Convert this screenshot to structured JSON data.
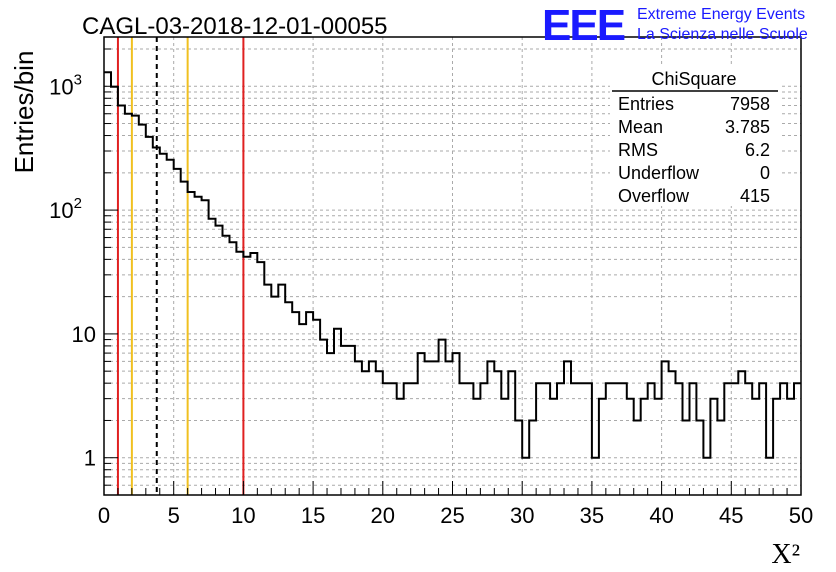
{
  "title": "CAGL-03-2018-12-01-00055",
  "logo": {
    "letters": "EEE",
    "line1": "Extreme Energy Events",
    "line2": "La Scienza nelle Scuole",
    "color": "#1a1aff"
  },
  "stats": {
    "title": "ChiSquare",
    "rows": [
      {
        "label": "Entries",
        "value": "7958"
      },
      {
        "label": "Mean",
        "value": "3.785"
      },
      {
        "label": "RMS",
        "value": "6.2"
      },
      {
        "label": "Underflow",
        "value": "0"
      },
      {
        "label": "Overflow",
        "value": "415"
      }
    ]
  },
  "chart_data": {
    "type": "histogram",
    "title": "CAGL-03-2018-12-01-00055",
    "xlabel": "X²",
    "ylabel": "Entries/bin",
    "xlim": [
      0,
      50
    ],
    "ylim": [
      0.5,
      2500
    ],
    "log_y": true,
    "grid": true,
    "bin_width": 0.5,
    "x_ticks": [
      "0",
      "5",
      "10",
      "15",
      "20",
      "25",
      "30",
      "35",
      "40",
      "45",
      "50"
    ],
    "y_ticks": [
      {
        "value": 1,
        "label": "1"
      },
      {
        "value": 10,
        "label": "10"
      },
      {
        "value": 100,
        "base": "10",
        "exp": "2"
      },
      {
        "value": 1000,
        "base": "10",
        "exp": "3"
      }
    ],
    "counts": [
      1300,
      990,
      700,
      600,
      580,
      490,
      390,
      320,
      285,
      255,
      215,
      170,
      140,
      128,
      120,
      85,
      75,
      62,
      55,
      46,
      42,
      45,
      38,
      25,
      20,
      25,
      18,
      15,
      12,
      15,
      13,
      9,
      7,
      11,
      8,
      8,
      6,
      5,
      6,
      5,
      4,
      4,
      3,
      4,
      4,
      7,
      6,
      6,
      9,
      6,
      7,
      4,
      4,
      3,
      4,
      6,
      5,
      3,
      5,
      2,
      1,
      2,
      4,
      4,
      3,
      4,
      6,
      4,
      4,
      4,
      1,
      3,
      4,
      4,
      4,
      3,
      2,
      3,
      4,
      3,
      6,
      5,
      4,
      2,
      4,
      2,
      1,
      3,
      2,
      4,
      4,
      5,
      4,
      3,
      4,
      1,
      3,
      4,
      3,
      4
    ],
    "vertical_lines": [
      {
        "x": 1.0,
        "color": "#e02020",
        "style": "solid"
      },
      {
        "x": 2.0,
        "color": "#f0c020",
        "style": "solid"
      },
      {
        "x": 3.785,
        "color": "#000000",
        "style": "dashed"
      },
      {
        "x": 6.0,
        "color": "#f0c020",
        "style": "solid"
      },
      {
        "x": 10.0,
        "color": "#e02020",
        "style": "solid"
      }
    ]
  }
}
